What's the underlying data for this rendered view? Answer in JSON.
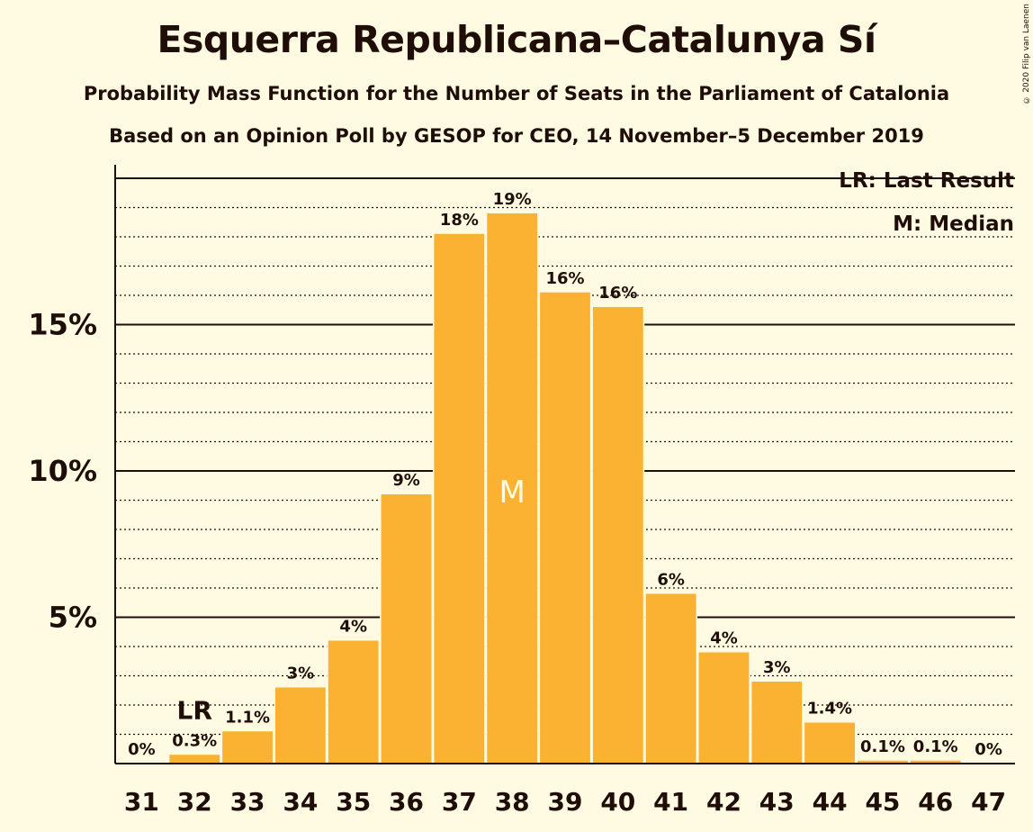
{
  "title": "Esquerra Republicana–Catalunya Sí",
  "subtitle1": "Probability Mass Function for the Number of Seats in the Parliament of Catalonia",
  "subtitle2": "Based on an Opinion Poll by GESOP for CEO, 14 November–5 December 2019",
  "copyright": "© 2020 Filip van Laenen",
  "legend": {
    "last_result": "LR: Last Result",
    "median": "M: Median"
  },
  "markers": {
    "last_result_label": "LR",
    "last_result_seat": 32,
    "median_label": "M",
    "median_seat": 38
  },
  "colors": {
    "background": "#fffbe2",
    "bar": "#fbb232",
    "text": "#1f0d08"
  },
  "chart_data": {
    "type": "bar",
    "categories": [
      31,
      32,
      33,
      34,
      35,
      36,
      37,
      38,
      39,
      40,
      41,
      42,
      43,
      44,
      45,
      46,
      47
    ],
    "values": [
      0,
      0.3,
      1.1,
      2.6,
      4.2,
      9.2,
      18.1,
      18.8,
      16.1,
      15.6,
      5.8,
      3.8,
      2.8,
      1.4,
      0.1,
      0.1,
      0
    ],
    "labels": [
      "0%",
      "0.3%",
      "1.1%",
      "3%",
      "4%",
      "9%",
      "18%",
      "19%",
      "16%",
      "16%",
      "6%",
      "4%",
      "3%",
      "1.4%",
      "0.1%",
      "0.1%",
      "0%"
    ],
    "yticks": [
      {
        "value": 5,
        "label": "5%"
      },
      {
        "value": 10,
        "label": "10%"
      },
      {
        "value": 15,
        "label": "15%"
      }
    ],
    "ylim": [
      0,
      20
    ],
    "grid": "major solid at 5% steps, minor dotted at 1% steps"
  }
}
